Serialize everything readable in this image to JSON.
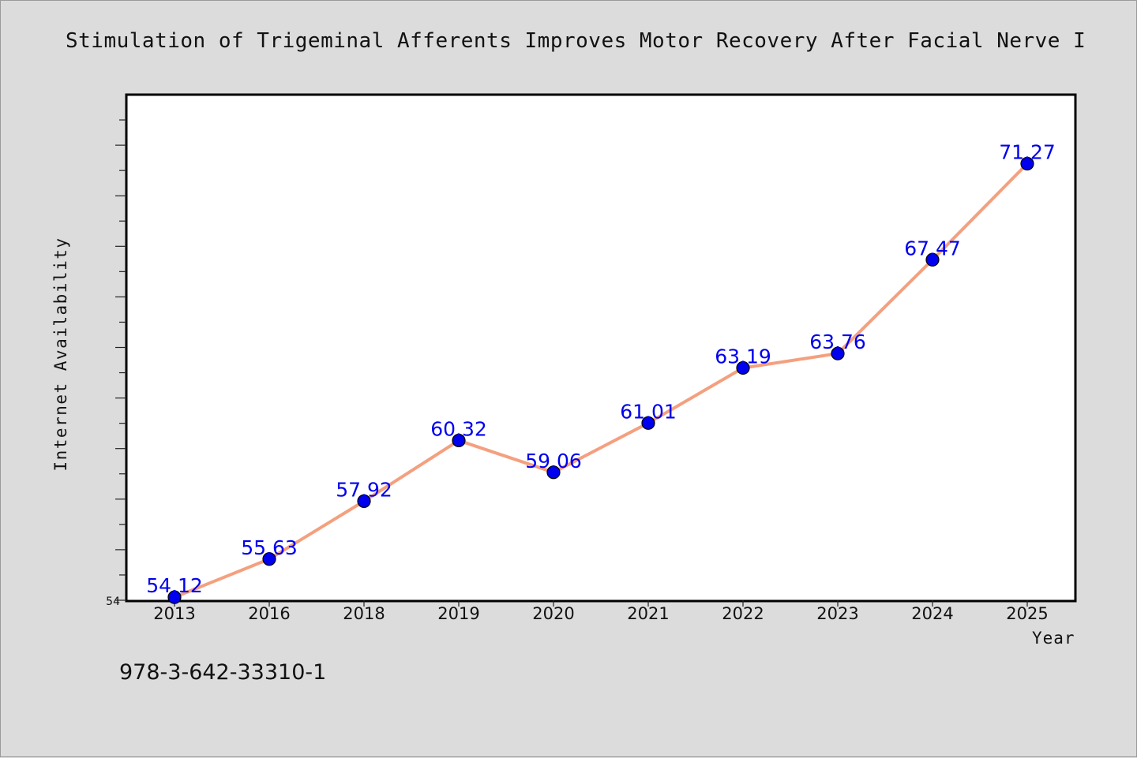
{
  "chart_data": {
    "type": "line",
    "title": "Stimulation of Trigeminal Afferents Improves Motor Recovery After Facial Nerve I",
    "xlabel": "Year",
    "ylabel": "Internet Availability",
    "categories": [
      "2013",
      "2016",
      "2018",
      "2019",
      "2020",
      "2021",
      "2022",
      "2023",
      "2024",
      "2025"
    ],
    "series": [
      {
        "values": [
          54.12,
          55.63,
          57.92,
          60.32,
          59.06,
          61.01,
          63.19,
          63.76,
          67.47,
          71.27
        ],
        "labels": [
          "54.12",
          "55.63",
          "57.92",
          "60.32",
          "59.06",
          "61.01",
          "63.19",
          "63.76",
          "67.47",
          "71.27"
        ],
        "line_color": "#f4a07f",
        "marker_color": "#0000ee"
      }
    ],
    "ylim": [
      54,
      74
    ],
    "y_tick_labels": [
      "54"
    ],
    "grid": false,
    "legend": "none"
  },
  "footer": {
    "code": "978-3-642-33310-1"
  }
}
